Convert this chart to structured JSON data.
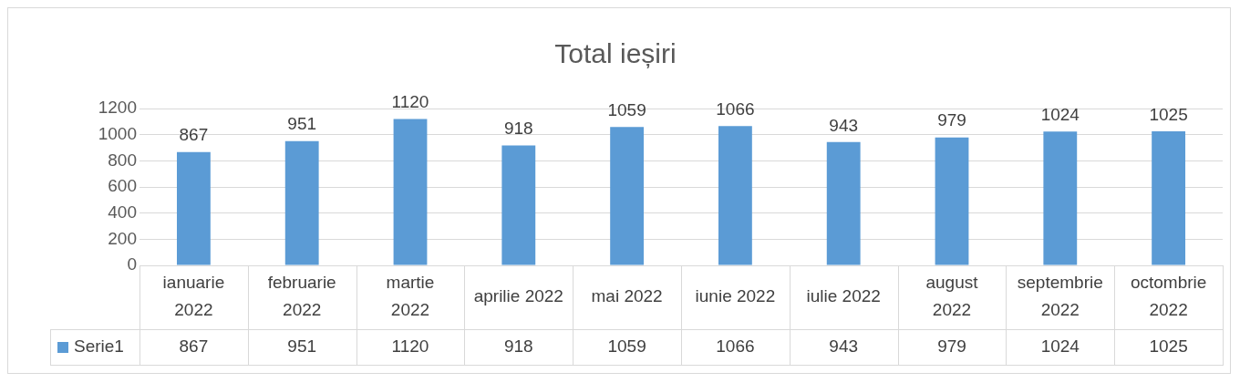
{
  "chart_data": {
    "type": "bar",
    "title": "Total ieșiri",
    "categories": [
      "ianuarie 2022",
      "februarie 2022",
      "martie 2022",
      "aprilie 2022",
      "mai 2022",
      "iunie 2022",
      "iulie 2022",
      "august 2022",
      "septembrie 2022",
      "octombrie 2022"
    ],
    "series": [
      {
        "name": "Serie1",
        "color": "#5b9bd5",
        "values": [
          867,
          951,
          1120,
          918,
          1059,
          1066,
          943,
          979,
          1024,
          1025
        ]
      }
    ],
    "ylim": [
      0,
      1200
    ],
    "yticks": [
      0,
      200,
      400,
      600,
      800,
      1000,
      1200
    ],
    "grid": "y",
    "legend": "bottom",
    "data_labels": true,
    "annotations": [
      "867",
      "951",
      "1120",
      "918",
      "1059",
      "1066",
      "943",
      "979",
      "1024",
      "1025"
    ]
  }
}
